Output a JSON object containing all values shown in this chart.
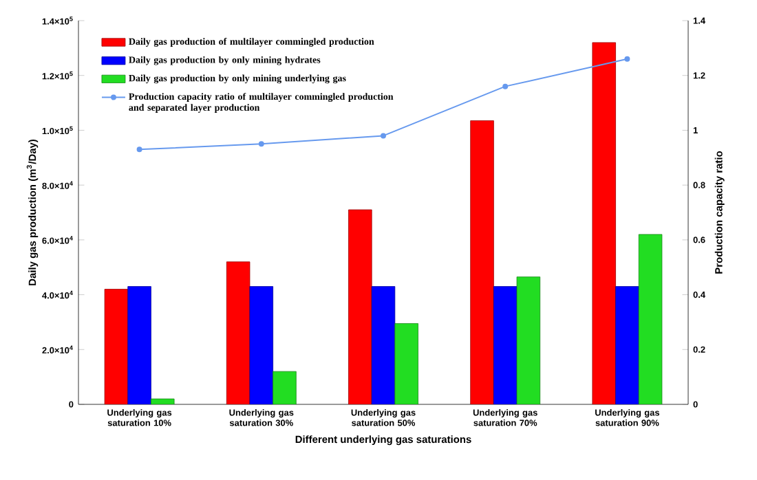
{
  "chart_data": {
    "type": "bar",
    "categories": [
      "Underlying gas saturation 10%",
      "Underlying gas saturation 30%",
      "Underlying gas saturation 50%",
      "Underlying gas saturation 70%",
      "Underlying gas saturation 90%"
    ],
    "xlabel": "Different underlying gas saturations",
    "ylabel": "Daily gas production (m$^{3}$/Day)",
    "y2label": "Production capacity ratio",
    "ylim": [
      0,
      140000
    ],
    "yticks": [
      0,
      {
        "value": 20000,
        "label": "2.0×10$^{4}$"
      },
      {
        "value": 40000,
        "label": "4.0×10$^{4}$"
      },
      {
        "value": 60000,
        "label": "6.0×10$^{4}$"
      },
      {
        "value": 80000,
        "label": "8.0×10$^{4}$"
      },
      {
        "value": 100000,
        "label": "1.0×10$^{5}$"
      },
      {
        "value": 120000,
        "label": "1.2×10$^{5}$"
      },
      {
        "value": 140000,
        "label": "1.4×10$^{5}$"
      }
    ],
    "y2lim": [
      0,
      1.4
    ],
    "y2ticks": [
      0,
      0.2,
      0.4,
      0.6,
      0.8,
      1,
      1.2,
      1.4
    ],
    "legend": "top left",
    "marker": "circle",
    "series": [
      {
        "name": "Daily gas production of multilayer commingled production",
        "color": "#ff0000",
        "values": [
          42000,
          52000,
          71000,
          103500,
          132000
        ]
      },
      {
        "name": "Daily gas production by only mining hydrates",
        "color": "#0000ff",
        "values": [
          43000,
          43000,
          43000,
          43000,
          43000
        ]
      },
      {
        "name": "Daily gas production by only mining underlying gas",
        "color": "#22dd22",
        "values": [
          2000,
          12000,
          29500,
          46500,
          62000
        ]
      },
      {
        "name": "Production capacity ratio of multilayer commingled production and separated layer production",
        "color": "#6699ee",
        "type": "line",
        "axis": "y2",
        "values": [
          0.93,
          0.95,
          0.98,
          1.16,
          1.26
        ]
      }
    ]
  }
}
